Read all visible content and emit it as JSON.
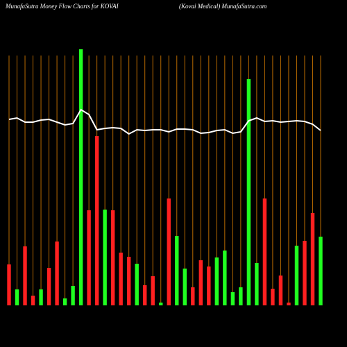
{
  "chart_data": {
    "type": "bar",
    "title": "MunafaSutra  Money Flow  Charts for KOVAI",
    "subtitle": "(Kovai   Medical) MunafaSutra.com",
    "values": [
      59,
      23,
      85,
      14,
      23,
      54,
      92,
      10,
      28,
      369,
      137,
      244,
      138,
      137,
      76,
      70,
      60,
      29,
      42,
      4,
      154,
      100,
      53,
      26,
      65,
      56,
      69,
      79,
      19,
      26,
      326,
      61,
      154,
      24,
      43,
      4,
      86,
      93,
      133,
      99
    ],
    "colors": [
      "#ff2020",
      "#20ff20",
      "#ff2020",
      "#ff2020",
      "#20ff20",
      "#ff2020",
      "#ff2020",
      "#20ff20",
      "#20ff20",
      "#20ff20",
      "#ff2020",
      "#ff2020",
      "#20ff20",
      "#ff2020",
      "#ff2020",
      "#ff2020",
      "#20ff20",
      "#ff2020",
      "#ff2020",
      "#20ff20",
      "#ff2020",
      "#20ff20",
      "#20ff20",
      "#ff2020",
      "#ff2020",
      "#ff2020",
      "#20ff20",
      "#20ff20",
      "#20ff20",
      "#20ff20",
      "#20ff20",
      "#20ff20",
      "#ff2020",
      "#ff2020",
      "#ff2020",
      "#ff2020",
      "#20ff20",
      "#ff2020",
      "#ff2020",
      "#20ff20"
    ],
    "line": {
      "color": "#ffffff",
      "values": [
        268,
        270,
        264,
        264,
        267,
        268,
        264,
        260,
        262,
        282,
        275,
        253,
        255,
        256,
        255,
        247,
        253,
        252,
        253,
        253,
        250,
        254,
        254,
        253,
        248,
        249,
        252,
        253,
        248,
        250,
        266,
        270,
        265,
        266,
        264,
        265,
        266,
        265,
        261,
        252
      ]
    },
    "ylim": [
      0,
      370
    ],
    "grid": true,
    "grid_color": "#b86a00"
  }
}
